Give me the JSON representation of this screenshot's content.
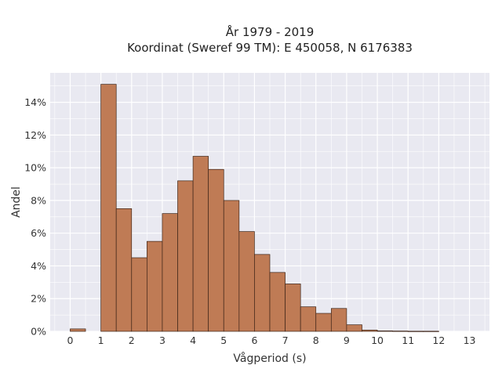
{
  "chart_data": {
    "type": "bar",
    "title": "År 1979 - 2019",
    "subtitle": "Koordinat (Sweref 99 TM): E 450058, N 6176383",
    "xlabel": "Vågperiod (s)",
    "ylabel": "Andel",
    "xlim": [
      -0.65,
      13.65
    ],
    "ylim": [
      0,
      0.158
    ],
    "x_ticks": [
      0,
      1,
      2,
      3,
      4,
      5,
      6,
      7,
      8,
      9,
      10,
      11,
      12,
      13
    ],
    "x_tick_labels": [
      "0",
      "1",
      "2",
      "3",
      "4",
      "5",
      "6",
      "7",
      "8",
      "9",
      "10",
      "11",
      "12",
      "13"
    ],
    "y_ticks": [
      0,
      0.02,
      0.04,
      0.06,
      0.08,
      0.1,
      0.12,
      0.14
    ],
    "y_tick_labels": [
      "0%",
      "2%",
      "4%",
      "6%",
      "8%",
      "10%",
      "12%",
      "14%"
    ],
    "bin_width": 0.5,
    "bins": [
      {
        "x0": 0.0,
        "x1": 0.5,
        "value": 0.0015
      },
      {
        "x0": 0.5,
        "x1": 1.0,
        "value": 0.0
      },
      {
        "x0": 1.0,
        "x1": 1.5,
        "value": 0.151
      },
      {
        "x0": 1.5,
        "x1": 2.0,
        "value": 0.075
      },
      {
        "x0": 2.0,
        "x1": 2.5,
        "value": 0.045
      },
      {
        "x0": 2.5,
        "x1": 3.0,
        "value": 0.055
      },
      {
        "x0": 3.0,
        "x1": 3.5,
        "value": 0.072
      },
      {
        "x0": 3.5,
        "x1": 4.0,
        "value": 0.092
      },
      {
        "x0": 4.0,
        "x1": 4.5,
        "value": 0.107
      },
      {
        "x0": 4.5,
        "x1": 5.0,
        "value": 0.099
      },
      {
        "x0": 5.0,
        "x1": 5.5,
        "value": 0.08
      },
      {
        "x0": 5.5,
        "x1": 6.0,
        "value": 0.061
      },
      {
        "x0": 6.0,
        "x1": 6.5,
        "value": 0.047
      },
      {
        "x0": 6.5,
        "x1": 7.0,
        "value": 0.036
      },
      {
        "x0": 7.0,
        "x1": 7.5,
        "value": 0.029
      },
      {
        "x0": 7.5,
        "x1": 8.0,
        "value": 0.015
      },
      {
        "x0": 8.0,
        "x1": 8.5,
        "value": 0.011
      },
      {
        "x0": 8.5,
        "x1": 9.0,
        "value": 0.014
      },
      {
        "x0": 9.0,
        "x1": 9.5,
        "value": 0.004
      },
      {
        "x0": 9.5,
        "x1": 10.0,
        "value": 0.0008
      },
      {
        "x0": 10.0,
        "x1": 10.5,
        "value": 0.0003
      },
      {
        "x0": 10.5,
        "x1": 11.0,
        "value": 0.0002
      },
      {
        "x0": 11.0,
        "x1": 11.5,
        "value": 0.0001
      },
      {
        "x0": 11.5,
        "x1": 12.0,
        "value": 0.0001
      }
    ],
    "grid": true,
    "colors": {
      "bar_fill": "#bf7b55",
      "bar_edge": "#3d2418",
      "plot_background": "#e9e9f1",
      "grid": "#ffffff"
    }
  }
}
